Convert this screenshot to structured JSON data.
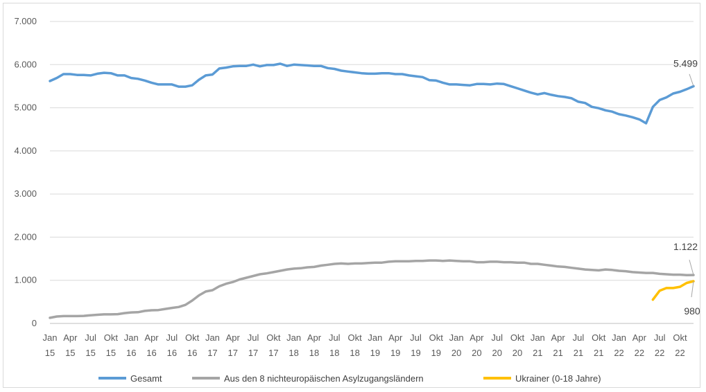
{
  "chart_data": {
    "type": "line",
    "title": "",
    "xlabel": "",
    "ylabel": "",
    "ylim": [
      0,
      7000
    ],
    "y_ticks": [
      {
        "value": 0,
        "label": "0"
      },
      {
        "value": 1000,
        "label": "1.000"
      },
      {
        "value": 2000,
        "label": "2.000"
      },
      {
        "value": 3000,
        "label": "3.000"
      },
      {
        "value": 4000,
        "label": "4.000"
      },
      {
        "value": 5000,
        "label": "5.000"
      },
      {
        "value": 6000,
        "label": "6.000"
      },
      {
        "value": 7000,
        "label": "7.000"
      }
    ],
    "grid": true,
    "legend_position": "bottom",
    "x_ticks": [
      {
        "index": 0,
        "month": "Jan",
        "year": "15"
      },
      {
        "index": 3,
        "month": "Apr",
        "year": "15"
      },
      {
        "index": 6,
        "month": "Jul",
        "year": "15"
      },
      {
        "index": 9,
        "month": "Okt",
        "year": "15"
      },
      {
        "index": 12,
        "month": "Jan",
        "year": "16"
      },
      {
        "index": 15,
        "month": "Apr",
        "year": "16"
      },
      {
        "index": 18,
        "month": "Jul",
        "year": "16"
      },
      {
        "index": 21,
        "month": "Okt",
        "year": "16"
      },
      {
        "index": 24,
        "month": "Jan",
        "year": "17"
      },
      {
        "index": 27,
        "month": "Apr",
        "year": "17"
      },
      {
        "index": 30,
        "month": "Jul",
        "year": "17"
      },
      {
        "index": 33,
        "month": "Okt",
        "year": "17"
      },
      {
        "index": 36,
        "month": "Jan",
        "year": "18"
      },
      {
        "index": 39,
        "month": "Apr",
        "year": "18"
      },
      {
        "index": 42,
        "month": "Jul",
        "year": "18"
      },
      {
        "index": 45,
        "month": "Okt",
        "year": "18"
      },
      {
        "index": 48,
        "month": "Jan",
        "year": "19"
      },
      {
        "index": 51,
        "month": "Apr",
        "year": "19"
      },
      {
        "index": 54,
        "month": "Jul",
        "year": "19"
      },
      {
        "index": 57,
        "month": "Okt",
        "year": "19"
      },
      {
        "index": 60,
        "month": "Jan",
        "year": "20"
      },
      {
        "index": 63,
        "month": "Apr",
        "year": "20"
      },
      {
        "index": 66,
        "month": "Jul",
        "year": "20"
      },
      {
        "index": 69,
        "month": "Okt",
        "year": "20"
      },
      {
        "index": 72,
        "month": "Jan",
        "year": "21"
      },
      {
        "index": 75,
        "month": "Apr",
        "year": "21"
      },
      {
        "index": 78,
        "month": "Jul",
        "year": "21"
      },
      {
        "index": 81,
        "month": "Okt",
        "year": "21"
      },
      {
        "index": 84,
        "month": "Jan",
        "year": "22"
      },
      {
        "index": 87,
        "month": "Apr",
        "year": "22"
      },
      {
        "index": 90,
        "month": "Jul",
        "year": "22"
      },
      {
        "index": 93,
        "month": "Okt",
        "year": "22"
      }
    ],
    "series": [
      {
        "name": "Gesamt",
        "color": "#5b9bd5",
        "start_index": 0,
        "values": [
          5620,
          5690,
          5780,
          5780,
          5760,
          5760,
          5750,
          5790,
          5810,
          5800,
          5750,
          5750,
          5690,
          5670,
          5630,
          5580,
          5540,
          5540,
          5540,
          5490,
          5490,
          5520,
          5650,
          5750,
          5770,
          5910,
          5930,
          5960,
          5970,
          5970,
          6000,
          5960,
          5990,
          5990,
          6020,
          5970,
          6000,
          5990,
          5980,
          5970,
          5970,
          5920,
          5900,
          5860,
          5840,
          5820,
          5800,
          5790,
          5790,
          5800,
          5800,
          5780,
          5780,
          5750,
          5730,
          5710,
          5640,
          5630,
          5580,
          5540,
          5540,
          5530,
          5520,
          5550,
          5550,
          5540,
          5560,
          5550,
          5500,
          5450,
          5400,
          5350,
          5310,
          5340,
          5300,
          5270,
          5250,
          5220,
          5140,
          5110,
          5020,
          4990,
          4940,
          4910,
          4850,
          4820,
          4780,
          4730,
          4640,
          5020,
          5180,
          5240,
          5330,
          5370,
          5430,
          5499
        ],
        "end_label": "5.499"
      },
      {
        "name": "Aus den 8 nichteuropäischen Asylzugangsländern",
        "color": "#a5a5a5",
        "start_index": 0,
        "values": [
          130,
          160,
          170,
          170,
          170,
          175,
          190,
          200,
          210,
          210,
          215,
          240,
          255,
          260,
          290,
          305,
          310,
          335,
          360,
          380,
          430,
          530,
          650,
          740,
          770,
          860,
          920,
          960,
          1020,
          1060,
          1100,
          1140,
          1160,
          1190,
          1220,
          1250,
          1270,
          1280,
          1300,
          1310,
          1340,
          1360,
          1380,
          1390,
          1380,
          1390,
          1390,
          1400,
          1410,
          1410,
          1430,
          1440,
          1440,
          1440,
          1450,
          1450,
          1460,
          1460,
          1450,
          1460,
          1450,
          1440,
          1440,
          1420,
          1420,
          1430,
          1430,
          1420,
          1420,
          1410,
          1410,
          1380,
          1380,
          1360,
          1340,
          1320,
          1310,
          1290,
          1270,
          1250,
          1240,
          1230,
          1250,
          1240,
          1220,
          1210,
          1190,
          1180,
          1170,
          1170,
          1150,
          1140,
          1130,
          1130,
          1120,
          1122
        ],
        "end_label": "1.122"
      },
      {
        "name": "Ukrainer (0-18 Jahre)",
        "color": "#ffc000",
        "start_index": 89,
        "values": [
          550,
          760,
          820,
          820,
          850,
          940,
          980
        ],
        "end_label": "980"
      }
    ]
  }
}
